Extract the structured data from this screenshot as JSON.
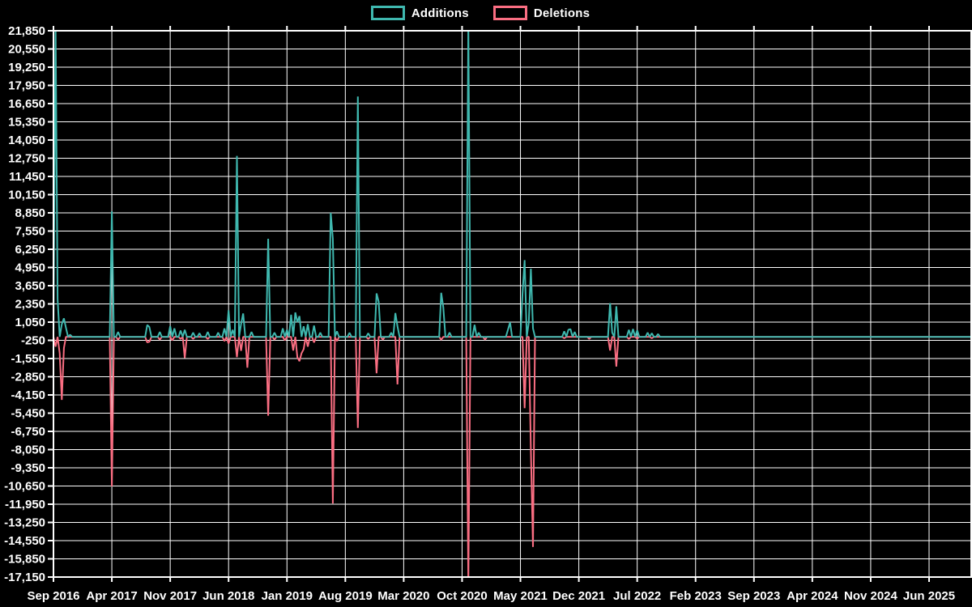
{
  "chart_data": {
    "type": "line",
    "background_color": "#000000",
    "grid": true,
    "grid_color": "#ffffff",
    "legend_position": "top-center",
    "x_axis": {
      "unit": "months since Sep 2016",
      "tick_interval_months": 7,
      "tick_labels": [
        "Sep 2016",
        "Apr 2017",
        "Nov 2017",
        "Jun 2018",
        "Jan 2019",
        "Aug 2019",
        "Mar 2020",
        "Oct 2020",
        "May 2021",
        "Dec 2021",
        "Jul 2022",
        "Feb 2023",
        "Sep 2023",
        "Apr 2024",
        "Nov 2024",
        "Jun 2025"
      ]
    },
    "y_axis": {
      "min": -17150,
      "max": 21850,
      "tick_step": 1300,
      "tick_labels": [
        "21,850",
        "20,550",
        "19,250",
        "17,950",
        "16,650",
        "15,350",
        "14,050",
        "12,750",
        "11,450",
        "10,150",
        "8,850",
        "7,550",
        "6,250",
        "4,950",
        "3,650",
        "2,350",
        "1,050",
        "-250",
        "-1,550",
        "-2,850",
        "-4,150",
        "-5,450",
        "-6,750",
        "-8,050",
        "-9,350",
        "-10,650",
        "-11,950",
        "-13,250",
        "-14,550",
        "-15,850",
        "-17,150"
      ]
    },
    "baseline": 0,
    "sample_step_months": 0.25,
    "clip_to_plot": true,
    "series": [
      {
        "name": "Additions",
        "color": "#3fb8af",
        "points": [
          [
            0.25,
            22300
          ],
          [
            0.45,
            2700
          ],
          [
            0.9,
            900
          ],
          [
            1.26,
            1320
          ],
          [
            1.5,
            650
          ],
          [
            2.0,
            150
          ],
          [
            6.94,
            8960
          ],
          [
            7.77,
            350
          ],
          [
            11.17,
            850
          ],
          [
            11.46,
            700
          ],
          [
            12.72,
            350
          ],
          [
            14.08,
            760
          ],
          [
            14.57,
            600
          ],
          [
            15.15,
            450
          ],
          [
            15.83,
            500
          ],
          [
            16.7,
            300
          ],
          [
            17.58,
            250
          ],
          [
            18.45,
            350
          ],
          [
            19.81,
            300
          ],
          [
            20.59,
            600
          ],
          [
            21.0,
            1900
          ],
          [
            21.4,
            500
          ],
          [
            21.9,
            12920
          ],
          [
            22.43,
            900
          ],
          [
            22.73,
            1670
          ],
          [
            23.79,
            350
          ],
          [
            25.64,
            7000
          ],
          [
            26.42,
            300
          ],
          [
            27.58,
            600
          ],
          [
            27.97,
            500
          ],
          [
            28.55,
            1580
          ],
          [
            28.94,
            1740
          ],
          [
            29.26,
            1050
          ],
          [
            29.52,
            1480
          ],
          [
            29.91,
            750
          ],
          [
            30.5,
            900
          ],
          [
            31.27,
            800
          ],
          [
            31.95,
            300
          ],
          [
            33.31,
            8850
          ],
          [
            33.56,
            7000
          ],
          [
            34.09,
            400
          ],
          [
            35.45,
            290
          ],
          [
            36.47,
            17150
          ],
          [
            37.78,
            250
          ],
          [
            38.82,
            3100
          ],
          [
            39.05,
            2500
          ],
          [
            40.5,
            300
          ],
          [
            41.08,
            1700
          ],
          [
            41.34,
            750
          ],
          [
            46.42,
            3140
          ],
          [
            46.75,
            2100
          ],
          [
            47.59,
            300
          ],
          [
            49.68,
            22300
          ],
          [
            50.41,
            860
          ],
          [
            51.09,
            300
          ],
          [
            54.58,
            500
          ],
          [
            54.83,
            1030
          ],
          [
            56.25,
            3100
          ],
          [
            56.62,
            5475
          ],
          [
            57.0,
            1000
          ],
          [
            57.25,
            4865
          ],
          [
            57.6,
            600
          ],
          [
            61.29,
            400
          ],
          [
            61.77,
            500
          ],
          [
            62.06,
            550
          ],
          [
            62.55,
            350
          ],
          [
            66.72,
            2400
          ],
          [
            67.1,
            300
          ],
          [
            67.6,
            2180
          ],
          [
            69.05,
            500
          ],
          [
            69.54,
            560
          ],
          [
            70.02,
            460
          ],
          [
            71.29,
            300
          ],
          [
            71.87,
            250
          ],
          [
            72.45,
            200
          ]
        ]
      },
      {
        "name": "Deletions",
        "color": "#fa6e82",
        "points": [
          [
            0.3,
            -700
          ],
          [
            0.75,
            -1170
          ],
          [
            1.07,
            -4500
          ],
          [
            1.36,
            -800
          ],
          [
            6.94,
            -10680
          ],
          [
            7.77,
            -200
          ],
          [
            11.17,
            -400
          ],
          [
            11.56,
            -350
          ],
          [
            12.72,
            -200
          ],
          [
            14.18,
            -250
          ],
          [
            15.15,
            -150
          ],
          [
            15.78,
            -1510
          ],
          [
            16.7,
            -150
          ],
          [
            18.45,
            -150
          ],
          [
            20.59,
            -300
          ],
          [
            21.08,
            -480
          ],
          [
            21.9,
            -1450
          ],
          [
            22.53,
            -1000
          ],
          [
            23.21,
            -2200
          ],
          [
            25.64,
            -5630
          ],
          [
            26.42,
            -200
          ],
          [
            27.68,
            -250
          ],
          [
            28.75,
            -980
          ],
          [
            29.13,
            -1450
          ],
          [
            29.39,
            -1740
          ],
          [
            29.71,
            -1170
          ],
          [
            30.04,
            -880
          ],
          [
            30.59,
            -700
          ],
          [
            31.37,
            -400
          ],
          [
            33.46,
            -11900
          ],
          [
            34.09,
            -300
          ],
          [
            36.52,
            -6500
          ],
          [
            37.78,
            -150
          ],
          [
            38.85,
            -2600
          ],
          [
            39.43,
            -200
          ],
          [
            41.13,
            -3400
          ],
          [
            46.42,
            -210
          ],
          [
            49.68,
            -17600
          ],
          [
            51.86,
            -200
          ],
          [
            56.6,
            -5100
          ],
          [
            57.18,
            -8050
          ],
          [
            57.49,
            -15000
          ],
          [
            61.29,
            -100
          ],
          [
            64.3,
            -150
          ],
          [
            66.77,
            -980
          ],
          [
            67.5,
            -2120
          ],
          [
            69.05,
            -150
          ],
          [
            70.02,
            -120
          ],
          [
            71.87,
            -100
          ]
        ]
      }
    ]
  }
}
